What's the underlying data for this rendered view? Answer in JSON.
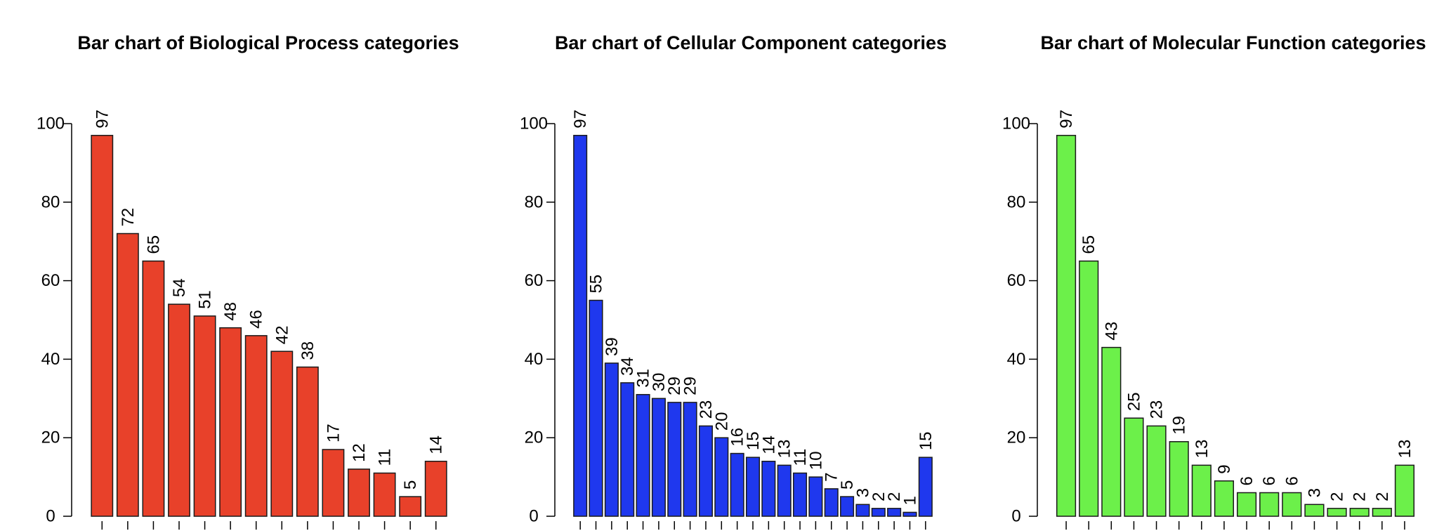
{
  "chart_data": [
    {
      "type": "bar",
      "title": "Bar chart of Biological Process categories",
      "xlabel": "",
      "ylabel": "",
      "ylim": [
        0,
        100
      ],
      "yticks": [
        0,
        20,
        40,
        60,
        80,
        100
      ],
      "grid": false,
      "color": "#E8412A",
      "values": [
        97,
        72,
        65,
        54,
        51,
        48,
        46,
        42,
        38,
        17,
        12,
        11,
        5,
        14
      ]
    },
    {
      "type": "bar",
      "title": "Bar chart of Cellular Component categories",
      "xlabel": "",
      "ylabel": "",
      "ylim": [
        0,
        100
      ],
      "yticks": [
        0,
        20,
        40,
        60,
        80,
        100
      ],
      "grid": false,
      "color": "#1F38EE",
      "values": [
        97,
        55,
        39,
        34,
        31,
        30,
        29,
        29,
        23,
        20,
        16,
        15,
        14,
        13,
        11,
        10,
        7,
        5,
        3,
        2,
        2,
        1,
        15
      ]
    },
    {
      "type": "bar",
      "title": "Bar chart of Molecular Function categories",
      "xlabel": "",
      "ylabel": "",
      "ylim": [
        0,
        100
      ],
      "yticks": [
        0,
        20,
        40,
        60,
        80,
        100
      ],
      "grid": false,
      "color": "#6CF04A",
      "values": [
        97,
        65,
        43,
        25,
        23,
        19,
        13,
        9,
        6,
        6,
        6,
        3,
        2,
        2,
        2,
        13
      ]
    }
  ]
}
